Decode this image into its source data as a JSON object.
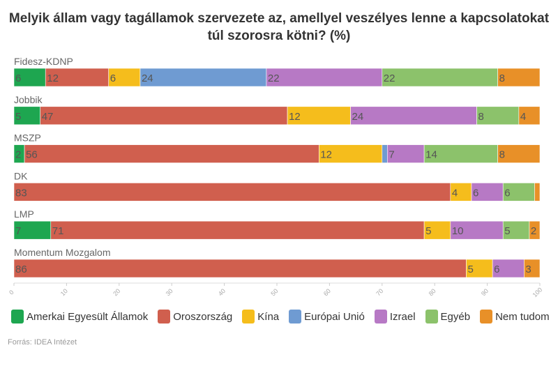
{
  "title": "Melyik állam vagy tagállamok szervezete az, amellyel veszélyes lenne a kapcsolatokat túl szorosra kötni? (%)",
  "source": "Forrás: IDEA Intézet",
  "chart_data": {
    "type": "bar",
    "stacked": true,
    "orientation": "horizontal",
    "title": "Melyik állam vagy tagállamok szervezete az, amellyel veszélyes lenne a kapcsolatokat túl szorosra kötni? (%)",
    "categories": [
      "Fidesz-KDNP",
      "Jobbik",
      "MSZP",
      "DK",
      "LMP",
      "Momentum Mozgalom"
    ],
    "xlim": [
      0,
      100
    ],
    "ticks": [
      0,
      10,
      20,
      30,
      40,
      50,
      60,
      70,
      80,
      90,
      100
    ],
    "legend_position": "bottom",
    "series": [
      {
        "name": "Amerkai Egyesült Államok",
        "color": "#1ea650",
        "values": [
          6,
          5,
          2,
          0,
          7,
          0
        ]
      },
      {
        "name": "Oroszország",
        "color": "#d05f4e",
        "values": [
          12,
          47,
          56,
          83,
          71,
          86
        ]
      },
      {
        "name": "Kína",
        "color": "#f5bd1c",
        "values": [
          6,
          12,
          12,
          4,
          5,
          5
        ]
      },
      {
        "name": "Európai Unió",
        "color": "#6f9bd2",
        "values": [
          24,
          0,
          1,
          0,
          0,
          0
        ]
      },
      {
        "name": "Izrael",
        "color": "#b779c5",
        "values": [
          22,
          24,
          7,
          6,
          10,
          6
        ]
      },
      {
        "name": "Egyéb",
        "color": "#8cc26b",
        "values": [
          22,
          8,
          14,
          6,
          5,
          0
        ]
      },
      {
        "name": "Nem tudom",
        "color": "#e89028",
        "values": [
          8,
          4,
          8,
          1,
          2,
          3
        ]
      }
    ]
  }
}
